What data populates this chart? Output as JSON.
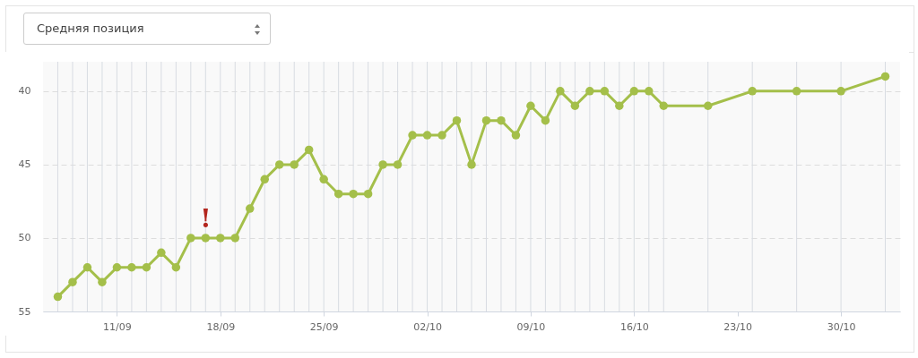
{
  "chart_data": {
    "type": "line",
    "title": "Средняя позиция",
    "x": [
      "--09-07",
      "--09-08",
      "--09-09",
      "--09-10",
      "--09-11",
      "--09-12",
      "--09-13",
      "--09-14",
      "--09-15",
      "--09-16",
      "--09-17",
      "--09-18",
      "--09-19",
      "--09-20",
      "--09-21",
      "--09-22",
      "--09-23",
      "--09-24",
      "--09-25",
      "--09-26",
      "--09-27",
      "--09-28",
      "--09-29",
      "--09-30",
      "--10-01",
      "--10-02",
      "--10-03",
      "--10-04",
      "--10-05",
      "--10-06",
      "--10-07",
      "--10-08",
      "--10-09",
      "--10-10",
      "--10-11",
      "--10-12",
      "--10-13",
      "--10-14",
      "--10-15",
      "--10-16",
      "--10-17",
      "--10-18",
      "--10-21",
      "--10-24",
      "--10-27",
      "--10-30",
      "--11-02"
    ],
    "series": [
      {
        "color": "#a4bf4a",
        "values": [
          54,
          53,
          52,
          53,
          52,
          52,
          52,
          51,
          52,
          50,
          50,
          50,
          50,
          48,
          46,
          45,
          45,
          44,
          46,
          47,
          47,
          47,
          45,
          45,
          43,
          43,
          43,
          42,
          45,
          42,
          42,
          43,
          41,
          42,
          40,
          41,
          40,
          40,
          41,
          40,
          40,
          41,
          41,
          40,
          40,
          40,
          39
        ]
      }
    ],
    "xlim": [
      "--09-06",
      "--11-03"
    ],
    "xticks": [
      {
        "value": "--09-11",
        "label": "11/09"
      },
      {
        "value": "--09-18",
        "label": "18/09"
      },
      {
        "value": "--09-25",
        "label": "25/09"
      },
      {
        "value": "--10-02",
        "label": "02/10"
      },
      {
        "value": "--10-09",
        "label": "09/10"
      },
      {
        "value": "--10-16",
        "label": "16/10"
      },
      {
        "value": "--10-23",
        "label": "23/10"
      },
      {
        "value": "--10-30",
        "label": "30/10"
      }
    ],
    "ylim": [
      55,
      38
    ],
    "yticks": [
      55,
      50,
      45,
      40
    ],
    "grid": true,
    "marker": "circle",
    "line_style": "solid",
    "annotations": [
      {
        "text": "!",
        "x": "--09-17",
        "y": 50
      }
    ]
  }
}
